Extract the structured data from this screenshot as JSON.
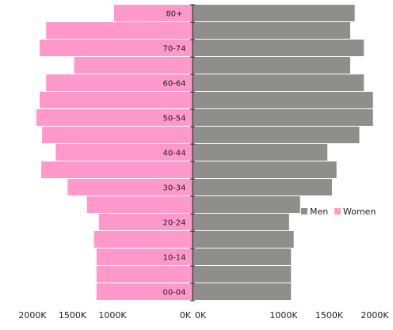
{
  "chart_data": {
    "type": "bar",
    "orientation": "horizontal",
    "subtype": "population-pyramid",
    "categories": [
      "80+",
      "75-79",
      "70-74",
      "65-69",
      "60-64",
      "55-59",
      "50-54",
      "45-49",
      "40-44",
      "35-39",
      "30-34",
      "25-29",
      "20-24",
      "15-19",
      "10-14",
      "05-09",
      "00-04"
    ],
    "category_labels_shown": [
      "80+",
      "70-74",
      "60-64",
      "50-54",
      "40-44",
      "30-34",
      "20-24",
      "10-14",
      "00-04"
    ],
    "series": [
      {
        "name": "Men",
        "color": "#8e8e8c",
        "values": [
          1780,
          1730,
          1880,
          1730,
          1880,
          1980,
          1980,
          1830,
          1480,
          1580,
          1530,
          1180,
          1060,
          1110,
          1080,
          1080,
          1080
        ]
      },
      {
        "name": "Women",
        "color": "#ff99cc",
        "values": [
          980,
          1830,
          1910,
          1480,
          1830,
          1910,
          1950,
          1880,
          1710,
          1890,
          1560,
          1320,
          1170,
          1230,
          1200,
          1200,
          1200
        ]
      }
    ],
    "x_unit": "K",
    "xlim": [
      0,
      2000
    ],
    "left_ticks": [
      "2000K",
      "1500K",
      "1000K",
      "0K"
    ],
    "right_ticks": [
      "0K",
      "1000K",
      "1500K",
      "2000K"
    ],
    "left_tick_values": [
      2000,
      1500,
      1000,
      0
    ],
    "right_tick_values": [
      0,
      1000,
      1500,
      2000
    ],
    "legend_position": "right",
    "grid": false
  }
}
